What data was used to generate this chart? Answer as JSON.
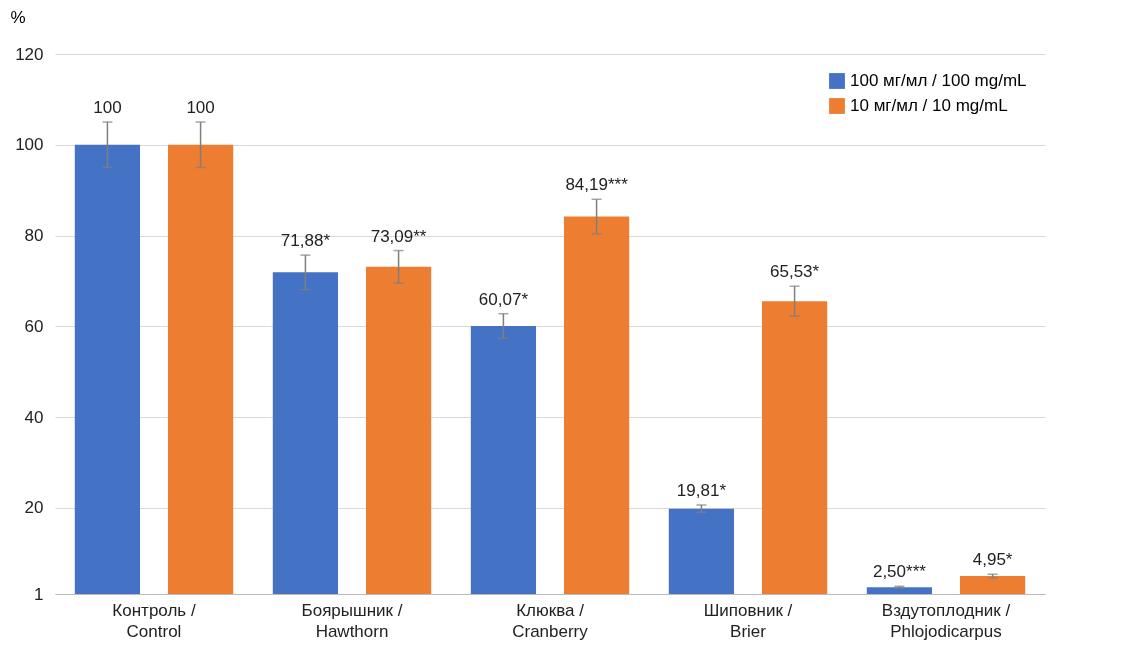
{
  "chart_data": {
    "type": "bar",
    "ylabel": "%",
    "categories": [
      "Контроль /\nControl",
      "Боярышник /\nHawthorn",
      "Клюква /\nCranberry",
      "Шиповник /\nBrier",
      "Вздутоплодник /\nPhlojodicarpus"
    ],
    "series": [
      {
        "name": "100 мг/мл / 100 mg/mL",
        "color": "#4472c4",
        "values": [
          100,
          71.88,
          60.07,
          19.81,
          2.5
        ],
        "errors": [
          5,
          3.8,
          2.7,
          0.8,
          0.2
        ],
        "value_labels": [
          "100",
          "71,88*",
          "60,07*",
          "19,81*",
          "2,50***"
        ]
      },
      {
        "name": "10 мг/мл / 10 mg/mL",
        "color": "#ed7d31",
        "values": [
          100,
          73.09,
          84.19,
          65.53,
          4.95
        ],
        "errors": [
          5,
          3.6,
          3.8,
          3.3,
          0.4
        ],
        "value_labels": [
          "100",
          "73,09**",
          "84,19***",
          "65,53*",
          "4,95*"
        ]
      }
    ],
    "ylim": [
      1,
      120
    ],
    "yticks": [
      1,
      20,
      40,
      60,
      80,
      100,
      120
    ],
    "grid": "y",
    "legend": "top right"
  }
}
